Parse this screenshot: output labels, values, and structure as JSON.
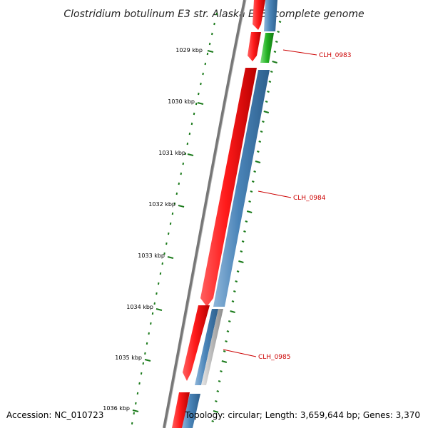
{
  "map": {
    "title": "Clostridium botulinum E3 str. Alaska E43, complete genome",
    "accession": "Accession: NC_010723",
    "summary": "Topology: circular; Length: 3,659,644 bp; Genes: 3,370",
    "ticks": [
      "1029 kbp",
      "1030 kbp",
      "1031 kbp",
      "1032 kbp",
      "1033 kbp",
      "1034 kbp",
      "1035 kbp",
      "1036 kbp"
    ],
    "gene_labels": [
      "CLH_0983",
      "CLH_0984",
      "CLH_0985"
    ],
    "colors": {
      "forward_cds": "#e01010",
      "reverse_cds": "#4a84b8",
      "green_feature": "#22b022",
      "gray_feature": "#b0b0b0",
      "backbone": "#777777",
      "ticks": "#1a7a1a",
      "label": "#cc0000"
    }
  }
}
